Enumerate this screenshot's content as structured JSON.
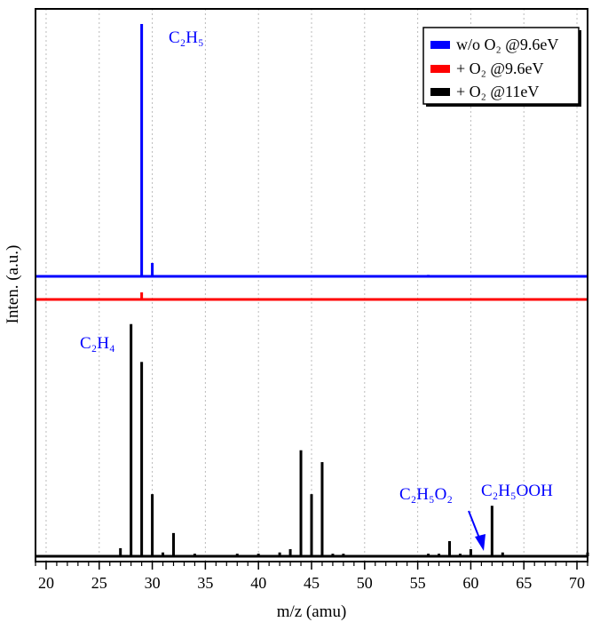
{
  "chart_data": {
    "type": "bar",
    "title": "",
    "xlabel": "m/z (amu)",
    "ylabel": "Inten. (a.u.)",
    "xlim": [
      19,
      71
    ],
    "xticks": [
      20,
      25,
      30,
      35,
      40,
      45,
      50,
      55,
      60,
      65,
      70
    ],
    "grid": "vertical dotted at major ticks",
    "legend_position": "top-right",
    "series": [
      {
        "name": "w/o O₂ @9.6eV",
        "color": "#0000ff",
        "x": [
          21,
          27,
          29,
          30,
          33,
          40,
          56,
          57
        ],
        "y": [
          0.5,
          0.4,
          100,
          5.3,
          0.3,
          0.3,
          0.6,
          0.3
        ]
      },
      {
        "name": "+ O₂ @9.6eV",
        "color": "#ff0000",
        "x": [
          29
        ],
        "y": [
          2.8
        ]
      },
      {
        "name": "+ O₂ @11eV",
        "color": "#000000",
        "x": [
          27,
          28,
          29,
          30,
          31,
          32,
          34,
          38,
          40,
          42,
          43,
          44,
          45,
          46,
          47,
          48,
          56,
          57,
          58,
          59,
          60,
          62,
          63,
          71
        ],
        "y": [
          3.2,
          92,
          77,
          24.6,
          1.5,
          9.2,
          1,
          1,
          1,
          1.5,
          2.8,
          42,
          24.6,
          37.3,
          1,
          1,
          1,
          1,
          6,
          1,
          2.8,
          20,
          1.5,
          1.5
        ]
      }
    ],
    "annotations": [
      {
        "text": "C₂H₅",
        "color": "#0000ff"
      },
      {
        "text": "C₂H₄",
        "color": "#0000ff"
      },
      {
        "text": "C₂H₅O₂",
        "color": "#0000ff"
      },
      {
        "text": "C₂H₅OOH",
        "color": "#0000ff"
      }
    ]
  }
}
